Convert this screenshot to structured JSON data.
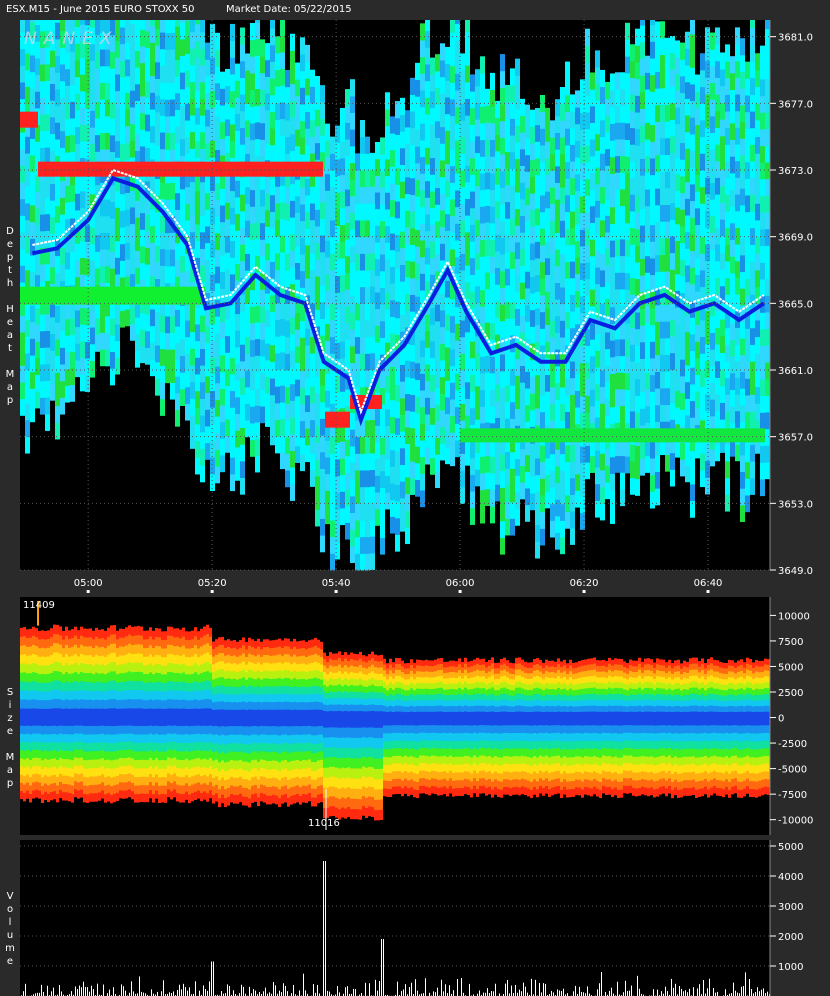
{
  "header": {
    "symbol": "ESX.M15 - June 2015 EURO STOXX 50",
    "market_date": "Market Date: 05/22/2015"
  },
  "logo": "NANEX",
  "panels": {
    "depth_label": "Depth Heat Map",
    "size_label": "Size Map",
    "volume_label": "Volume"
  },
  "chart_data": [
    {
      "type": "heatmap",
      "name_on_chart": "Depth Heat Map",
      "x_ticks": [
        "05:00",
        "05:20",
        "05:40",
        "06:00",
        "06:20",
        "06:40"
      ],
      "x_range": [
        "04:49",
        "06:50"
      ],
      "y_ticks": [
        "3681.0",
        "3677.0",
        "3673.0",
        "3669.0",
        "3665.0",
        "3661.0",
        "3657.0",
        "3653.0",
        "3649.0"
      ],
      "ylim": [
        3649,
        3682
      ],
      "price_path": [
        {
          "t": "04:51",
          "p": 3668.5
        },
        {
          "t": "04:55",
          "p": 3668.8
        },
        {
          "t": "05:00",
          "p": 3670.5
        },
        {
          "t": "05:04",
          "p": 3673.0
        },
        {
          "t": "05:08",
          "p": 3672.5
        },
        {
          "t": "05:12",
          "p": 3671.0
        },
        {
          "t": "05:16",
          "p": 3669.0
        },
        {
          "t": "05:19",
          "p": 3665.2
        },
        {
          "t": "05:23",
          "p": 3665.5
        },
        {
          "t": "05:27",
          "p": 3667.2
        },
        {
          "t": "05:31",
          "p": 3666.0
        },
        {
          "t": "05:35",
          "p": 3665.5
        },
        {
          "t": "05:38",
          "p": 3662.0
        },
        {
          "t": "05:42",
          "p": 3661.0
        },
        {
          "t": "05:44",
          "p": 3658.5
        },
        {
          "t": "05:47",
          "p": 3661.5
        },
        {
          "t": "05:51",
          "p": 3663.0
        },
        {
          "t": "05:55",
          "p": 3665.5
        },
        {
          "t": "05:58",
          "p": 3667.5
        },
        {
          "t": "06:01",
          "p": 3665.0
        },
        {
          "t": "06:05",
          "p": 3662.5
        },
        {
          "t": "06:09",
          "p": 3663.0
        },
        {
          "t": "06:13",
          "p": 3662.0
        },
        {
          "t": "06:17",
          "p": 3662.0
        },
        {
          "t": "06:21",
          "p": 3664.5
        },
        {
          "t": "06:25",
          "p": 3664.0
        },
        {
          "t": "06:29",
          "p": 3665.5
        },
        {
          "t": "06:33",
          "p": 3666.0
        },
        {
          "t": "06:37",
          "p": 3665.0
        },
        {
          "t": "06:41",
          "p": 3665.5
        },
        {
          "t": "06:45",
          "p": 3664.5
        },
        {
          "t": "06:49",
          "p": 3665.5
        }
      ]
    },
    {
      "type": "area",
      "name_on_chart": "Size Map",
      "y_ticks": [
        "10000",
        "7500",
        "5000",
        "2500",
        "0",
        "-2500",
        "-5000",
        "-7500",
        "-10000"
      ],
      "ylim": [
        -11500,
        11800
      ],
      "max_label": "11409",
      "min_label": "11016",
      "max_value": 11409,
      "min_value": -11016
    },
    {
      "type": "bar",
      "name_on_chart": "Volume",
      "y_ticks": [
        "5000",
        "4000",
        "3000",
        "2000",
        "1000"
      ],
      "ylim": [
        0,
        5200
      ]
    }
  ],
  "colors": {
    "background": "#000000",
    "frame": "#2a2a2a",
    "heat_cyan": "#1ee0f0",
    "heat_blue": "#1890e8",
    "heat_green": "#10f070",
    "heat_red": "#ff2020",
    "trade_path": "#ffffff",
    "best_bid_ask": "#0a1ee0"
  }
}
